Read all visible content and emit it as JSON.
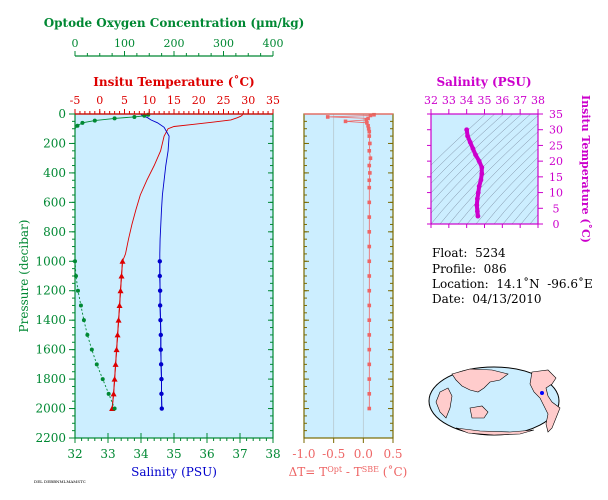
{
  "colors": {
    "oxygen": "#008833",
    "temperature": "#dd0000",
    "salinity": "#0000cc",
    "delta": "#ee6666",
    "salinity_ts": "#cc00cc",
    "pressure": "#008833",
    "panel_bg": "#cceeff",
    "delta_frame": "#7a6a00"
  },
  "info": {
    "float_label": "Float:",
    "float_value": "5234",
    "profile_label": "Profile:",
    "profile_value": "086",
    "location_label": "Location:",
    "location_value": "14.1˚N  -96.6˚E",
    "date_label": "Date:",
    "date_value": "04/13/2010"
  },
  "footer_text": "DEL DEBBNMLMAMSTC",
  "chart_data": [
    {
      "type": "line",
      "title": "Profiles",
      "ylabel": "Pressure (decibar)",
      "ylim": [
        2200,
        0
      ],
      "yticks": [
        0,
        200,
        400,
        600,
        800,
        1000,
        1200,
        1400,
        1600,
        1800,
        2000,
        2200
      ],
      "axes": {
        "oxygen": {
          "label": "Optode Oxygen Concentration (µm/kg)",
          "lim": [
            0,
            400
          ],
          "ticks": [
            0,
            100,
            200,
            300,
            400
          ]
        },
        "temperature": {
          "label": "Insitu Temperature (˚C)",
          "lim": [
            -5,
            35
          ],
          "ticks": [
            -5,
            0,
            5,
            10,
            15,
            20,
            25,
            30,
            35
          ]
        },
        "salinity": {
          "label": "Salinity (PSU)",
          "lim": [
            32,
            38
          ],
          "ticks": [
            32,
            33,
            34,
            35,
            36,
            37,
            38
          ]
        }
      },
      "series": [
        {
          "name": "Temperature",
          "axis": "temperature",
          "points": [
            [
              28.9,
              5
            ],
            [
              28.5,
              15
            ],
            [
              27.8,
              25
            ],
            [
              26.5,
              40
            ],
            [
              23,
              55
            ],
            [
              19,
              70
            ],
            [
              15,
              85
            ],
            [
              13.8,
              100
            ],
            [
              13,
              150
            ],
            [
              12.3,
              250
            ],
            [
              11,
              350
            ],
            [
              9.5,
              450
            ],
            [
              8.2,
              550
            ],
            [
              7.3,
              650
            ],
            [
              6.5,
              750
            ],
            [
              5.8,
              850
            ],
            [
              5.2,
              950
            ],
            [
              4.6,
              1000
            ],
            [
              4.4,
              1100
            ],
            [
              4.2,
              1200
            ],
            [
              4.0,
              1300
            ],
            [
              3.8,
              1400
            ],
            [
              3.6,
              1500
            ],
            [
              3.4,
              1600
            ],
            [
              3.2,
              1700
            ],
            [
              3.0,
              1800
            ],
            [
              2.8,
              1900
            ],
            [
              2.5,
              2000
            ]
          ],
          "markers": [
            [
              4.6,
              1000
            ],
            [
              4.4,
              1100
            ],
            [
              4.2,
              1200
            ],
            [
              4.0,
              1300
            ],
            [
              3.8,
              1400
            ],
            [
              3.6,
              1500
            ],
            [
              3.4,
              1600
            ],
            [
              3.2,
              1700
            ],
            [
              3.0,
              1800
            ],
            [
              2.8,
              1900
            ],
            [
              2.5,
              2000
            ]
          ]
        },
        {
          "name": "Salinity",
          "axis": "salinity",
          "points": [
            [
              34.0,
              5
            ],
            [
              34.1,
              15
            ],
            [
              34.2,
              25
            ],
            [
              34.3,
              40
            ],
            [
              34.5,
              60
            ],
            [
              34.7,
              90
            ],
            [
              34.85,
              150
            ],
            [
              34.82,
              250
            ],
            [
              34.75,
              350
            ],
            [
              34.7,
              450
            ],
            [
              34.65,
              550
            ],
            [
              34.62,
              650
            ],
            [
              34.6,
              750
            ],
            [
              34.58,
              850
            ],
            [
              34.57,
              950
            ],
            [
              34.57,
              1000
            ],
            [
              34.57,
              1100
            ],
            [
              34.58,
              1200
            ],
            [
              34.58,
              1300
            ],
            [
              34.59,
              1400
            ],
            [
              34.6,
              1500
            ],
            [
              34.6,
              1600
            ],
            [
              34.61,
              1700
            ],
            [
              34.62,
              1800
            ],
            [
              34.62,
              1900
            ],
            [
              34.63,
              2000
            ]
          ],
          "markers": [
            [
              34.57,
              1000
            ],
            [
              34.57,
              1100
            ],
            [
              34.58,
              1200
            ],
            [
              34.58,
              1300
            ],
            [
              34.59,
              1400
            ],
            [
              34.6,
              1500
            ],
            [
              34.6,
              1600
            ],
            [
              34.61,
              1700
            ],
            [
              34.62,
              1800
            ],
            [
              34.62,
              1900
            ],
            [
              34.63,
              2000
            ]
          ]
        },
        {
          "name": "Oxygen",
          "axis": "oxygen",
          "points": [
            [
              148,
              5
            ],
            [
              140,
              12
            ],
            [
              120,
              20
            ],
            [
              80,
              30
            ],
            [
              40,
              45
            ],
            [
              15,
              60
            ],
            [
              5,
              80
            ],
            [
              0,
              100
            ]
          ],
          "markers": [
            [
              148,
              5
            ],
            [
              140,
              12
            ],
            [
              120,
              20
            ],
            [
              80,
              30
            ],
            [
              40,
              45
            ],
            [
              15,
              60
            ],
            [
              5,
              80
            ],
            [
              0,
              1000
            ],
            [
              2,
              1100
            ],
            [
              6,
              1200
            ],
            [
              12,
              1300
            ],
            [
              18,
              1400
            ],
            [
              25,
              1500
            ],
            [
              34,
              1600
            ],
            [
              44,
              1700
            ],
            [
              56,
              1800
            ],
            [
              68,
              1900
            ],
            [
              80,
              2000
            ]
          ]
        }
      ]
    },
    {
      "type": "scatter",
      "xlabel": "ΔT= T^Opt - T^SBE (˚C)",
      "xlim": [
        -1.0,
        0.5
      ],
      "xticks": [
        -1.0,
        -0.5,
        0.0,
        0.5
      ],
      "ylim": [
        2200,
        0
      ],
      "series": [
        {
          "name": "ΔT",
          "points": [
            [
              0.18,
              5
            ],
            [
              0.12,
              10
            ],
            [
              -0.6,
              20
            ],
            [
              0.08,
              30
            ],
            [
              0.05,
              40
            ],
            [
              -0.3,
              50
            ],
            [
              0.06,
              60
            ],
            [
              0.08,
              80
            ],
            [
              0.09,
              100
            ],
            [
              0.1,
              120
            ],
            [
              0.1,
              150
            ],
            [
              0.11,
              200
            ],
            [
              0.1,
              250
            ],
            [
              0.12,
              300
            ],
            [
              0.1,
              350
            ],
            [
              0.11,
              400
            ],
            [
              0.1,
              450
            ],
            [
              0.1,
              500
            ],
            [
              0.1,
              600
            ],
            [
              0.1,
              700
            ],
            [
              0.1,
              800
            ],
            [
              0.1,
              900
            ],
            [
              0.1,
              1000
            ],
            [
              0.1,
              1100
            ],
            [
              0.1,
              1200
            ],
            [
              0.1,
              1300
            ],
            [
              0.1,
              1400
            ],
            [
              0.1,
              1500
            ],
            [
              0.1,
              1600
            ],
            [
              0.1,
              1700
            ],
            [
              0.1,
              1800
            ],
            [
              0.1,
              1900
            ],
            [
              0.1,
              2000
            ]
          ]
        }
      ]
    },
    {
      "type": "line",
      "title": "Salinity (PSU)",
      "xlabel": "Salinity (PSU)",
      "ylabel": "Insitu Temperature (˚C)",
      "xlim": [
        32,
        38
      ],
      "ylim": [
        0,
        35
      ],
      "xticks": [
        32,
        33,
        34,
        35,
        36,
        37,
        38
      ],
      "yticks": [
        0,
        5,
        10,
        15,
        20,
        25,
        30,
        35
      ],
      "series": [
        {
          "name": "T-S",
          "points": [
            [
              34.0,
              30
            ],
            [
              34.05,
              28
            ],
            [
              34.2,
              26
            ],
            [
              34.35,
              24
            ],
            [
              34.5,
              22
            ],
            [
              34.7,
              20
            ],
            [
              34.85,
              18
            ],
            [
              34.85,
              16
            ],
            [
              34.8,
              14
            ],
            [
              34.7,
              12
            ],
            [
              34.65,
              10
            ],
            [
              34.6,
              8
            ],
            [
              34.57,
              6
            ],
            [
              34.6,
              4
            ],
            [
              34.63,
              2.5
            ]
          ]
        }
      ]
    }
  ]
}
